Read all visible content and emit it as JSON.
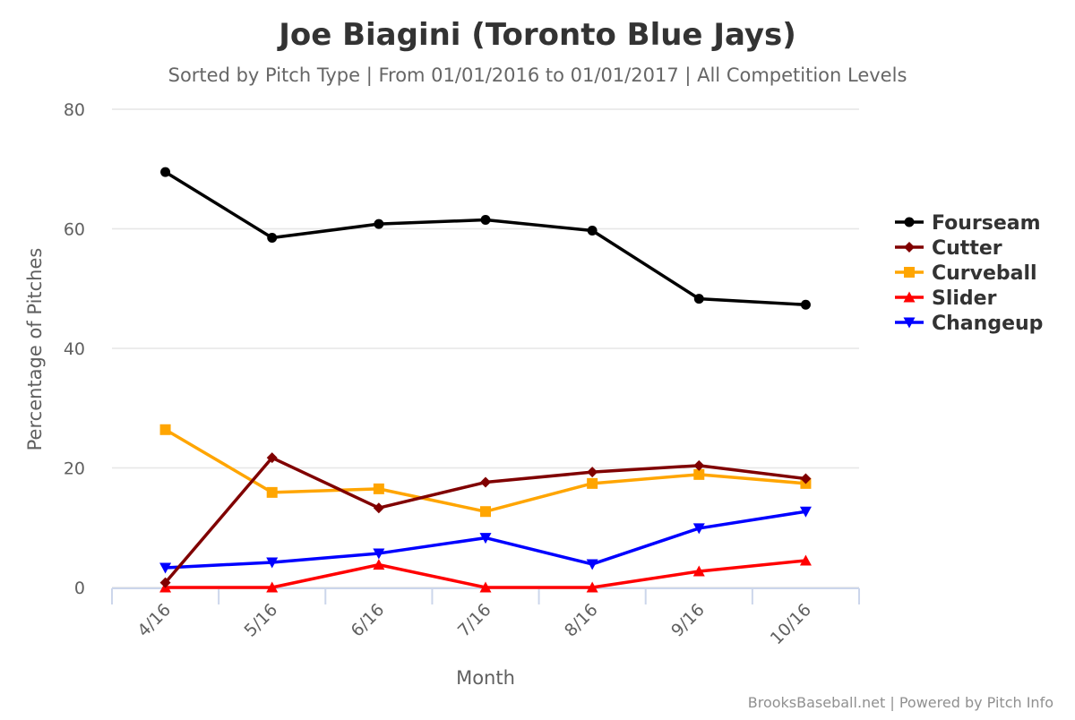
{
  "title": "Joe Biagini (Toronto Blue Jays)",
  "subtitle": "Sorted by Pitch Type | From 01/01/2016 to 01/01/2017 | All Competition Levels",
  "credits": "BrooksBaseball.net | Powered by Pitch Info",
  "chart_data": {
    "type": "line",
    "title": "Joe Biagini (Toronto Blue Jays)",
    "subtitle": "Sorted by Pitch Type | From 01/01/2016 to 01/01/2017 | All Competition Levels",
    "xlabel": "Month",
    "ylabel": "Percentage of Pitches",
    "categories": [
      "4/16",
      "5/16",
      "6/16",
      "7/16",
      "8/16",
      "9/16",
      "10/16"
    ],
    "ylim": [
      0,
      80
    ],
    "yticks": [
      "0",
      "20",
      "40",
      "60",
      "80"
    ],
    "grid": true,
    "legend_position": "right",
    "series": [
      {
        "name": "Fourseam",
        "color": "#000000",
        "marker": "circle",
        "values": [
          69.5,
          58.5,
          60.8,
          61.5,
          59.7,
          48.3,
          47.3
        ]
      },
      {
        "name": "Cutter",
        "color": "#800000",
        "marker": "diamond",
        "values": [
          0.8,
          21.7,
          13.3,
          17.6,
          19.3,
          20.4,
          18.2
        ]
      },
      {
        "name": "Curveball",
        "color": "#FFA500",
        "marker": "square",
        "values": [
          26.4,
          15.9,
          16.5,
          12.7,
          17.4,
          18.9,
          17.4
        ]
      },
      {
        "name": "Slider",
        "color": "#FF0000",
        "marker": "triangle",
        "values": [
          0,
          0,
          3.8,
          0,
          0,
          2.7,
          4.5
        ]
      },
      {
        "name": "Changeup",
        "color": "#0000FF",
        "marker": "triangle-down",
        "values": [
          3.3,
          4.2,
          5.7,
          8.3,
          3.9,
          9.9,
          12.7
        ]
      }
    ]
  }
}
